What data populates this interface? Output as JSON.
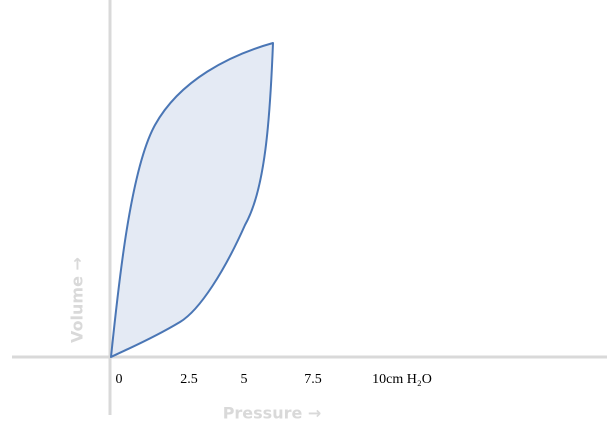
{
  "x_axis": {
    "label": "Pressure →",
    "ticks": [
      "0",
      "2.5",
      "5",
      "7.5",
      "10cm H₂O"
    ]
  },
  "y_axis": {
    "label": "Volume →"
  }
}
